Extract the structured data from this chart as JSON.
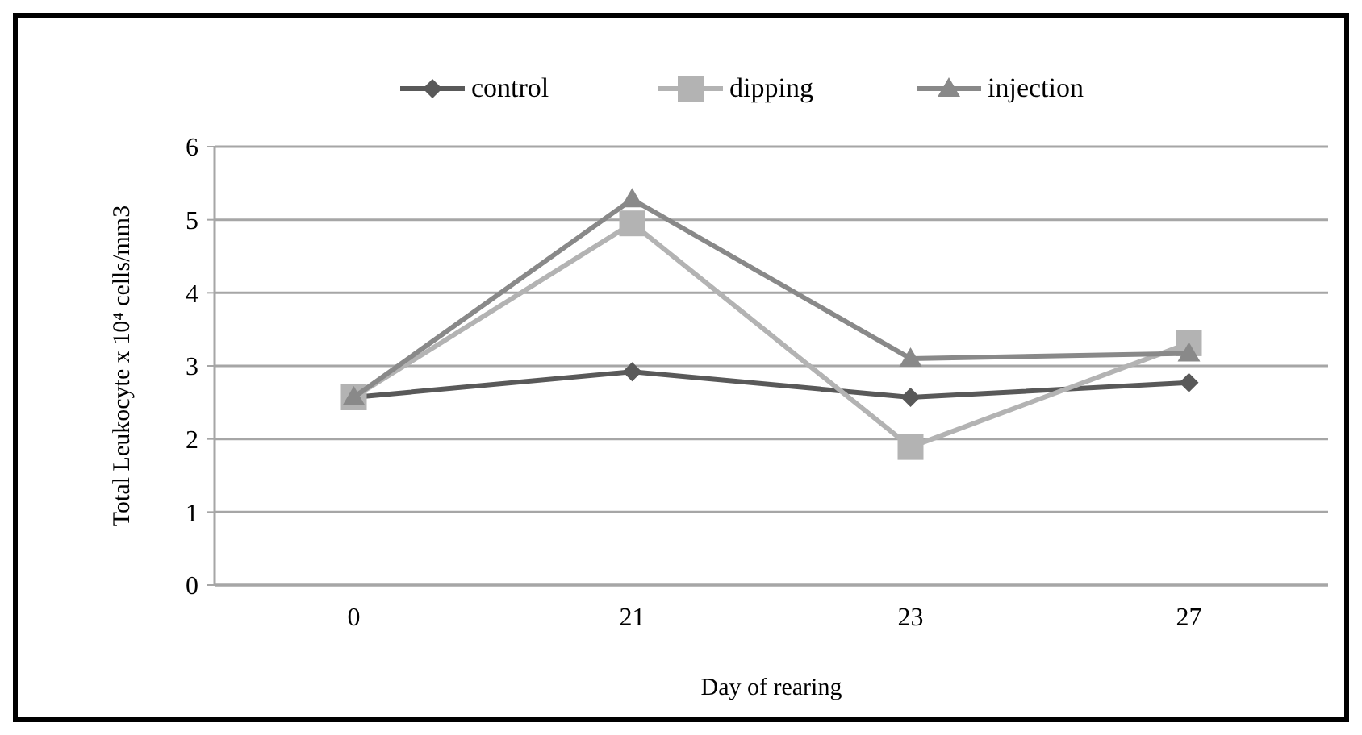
{
  "chart_data": {
    "type": "line",
    "xlabel": "Day of rearing",
    "ylabel": "Total Leukocyte x 10⁴ cells/mm3",
    "categories": [
      "0",
      "21",
      "23",
      "27"
    ],
    "ylim": [
      0,
      6
    ],
    "yticks": [
      0,
      1,
      2,
      3,
      4,
      5,
      6
    ],
    "grid": "y",
    "legend": "top",
    "line_style": "solid",
    "series": [
      {
        "name": "control",
        "color": "#595959",
        "marker": "diamond",
        "values": [
          2.57,
          2.92,
          2.57,
          2.77
        ]
      },
      {
        "name": "dipping",
        "color": "#b3b3b3",
        "marker": "square",
        "values": [
          2.57,
          4.95,
          1.89,
          3.31
        ]
      },
      {
        "name": "injection",
        "color": "#898989",
        "marker": "triangle",
        "values": [
          2.57,
          5.28,
          3.1,
          3.17
        ]
      }
    ]
  }
}
